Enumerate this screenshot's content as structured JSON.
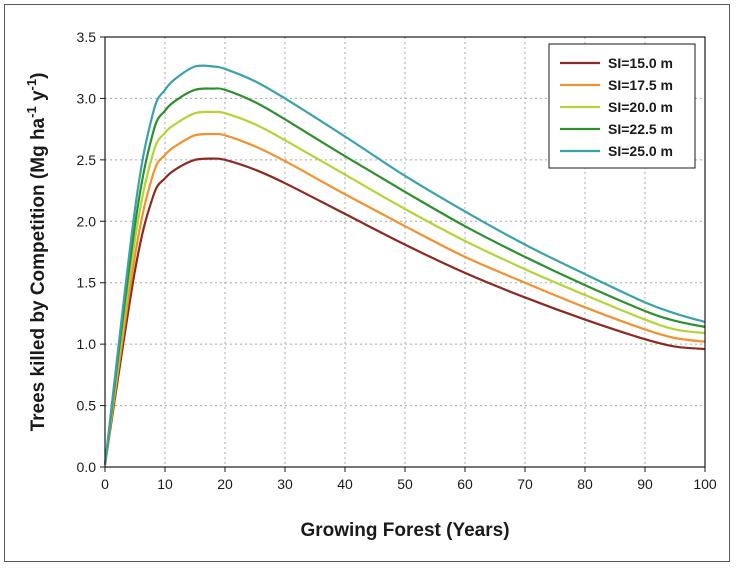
{
  "chart_data": {
    "type": "line",
    "xlabel": "Growing Forest (Years)",
    "ylabel_main": "Trees killed by Competition (Mg ha",
    "ylabel_sup1": "-1",
    "ylabel_mid": " y",
    "ylabel_sup2": "-1",
    "ylabel_end": ")",
    "xlim": [
      0,
      100
    ],
    "ylim": [
      0,
      3.5
    ],
    "xticks": [
      0,
      10,
      20,
      30,
      40,
      50,
      60,
      70,
      80,
      90,
      100
    ],
    "yticks": [
      0.0,
      0.5,
      1.0,
      1.5,
      2.0,
      2.5,
      3.0,
      3.5
    ],
    "xtick_labels": [
      "0",
      "10",
      "20",
      "30",
      "40",
      "50",
      "60",
      "70",
      "80",
      "90",
      "100"
    ],
    "ytick_labels": [
      "0.0",
      "0.5",
      "1.0",
      "1.5",
      "2.0",
      "2.5",
      "3.0",
      "3.5"
    ],
    "grid": true,
    "legend_position": "top-right",
    "x": [
      0,
      5,
      8,
      10,
      12,
      15,
      18,
      20,
      25,
      30,
      40,
      50,
      60,
      70,
      80,
      90,
      95,
      100
    ],
    "series": [
      {
        "name": "SI=15.0 m",
        "color": "#8b2a22",
        "values": [
          0.02,
          1.6,
          2.2,
          2.35,
          2.43,
          2.5,
          2.51,
          2.5,
          2.42,
          2.31,
          2.06,
          1.81,
          1.58,
          1.38,
          1.2,
          1.04,
          0.98,
          0.96
        ]
      },
      {
        "name": "SI=17.5 m",
        "color": "#f2922e",
        "values": [
          0.02,
          1.72,
          2.38,
          2.54,
          2.62,
          2.7,
          2.71,
          2.7,
          2.61,
          2.49,
          2.22,
          1.96,
          1.71,
          1.5,
          1.3,
          1.12,
          1.05,
          1.02
        ]
      },
      {
        "name": "SI=20.0 m",
        "color": "#b3d435",
        "values": [
          0.02,
          1.85,
          2.55,
          2.72,
          2.8,
          2.88,
          2.89,
          2.88,
          2.79,
          2.66,
          2.38,
          2.1,
          1.84,
          1.61,
          1.4,
          1.2,
          1.12,
          1.09
        ]
      },
      {
        "name": "SI=22.5 m",
        "color": "#2f8f2f",
        "values": [
          0.02,
          1.97,
          2.72,
          2.9,
          2.99,
          3.07,
          3.08,
          3.07,
          2.97,
          2.83,
          2.53,
          2.24,
          1.96,
          1.71,
          1.48,
          1.27,
          1.19,
          1.14
        ]
      },
      {
        "name": "SI=25.0 m",
        "color": "#3aa3a8",
        "values": [
          0.02,
          2.1,
          2.88,
          3.07,
          3.17,
          3.26,
          3.26,
          3.24,
          3.14,
          3.0,
          2.69,
          2.37,
          2.08,
          1.81,
          1.57,
          1.34,
          1.25,
          1.18
        ]
      }
    ]
  }
}
